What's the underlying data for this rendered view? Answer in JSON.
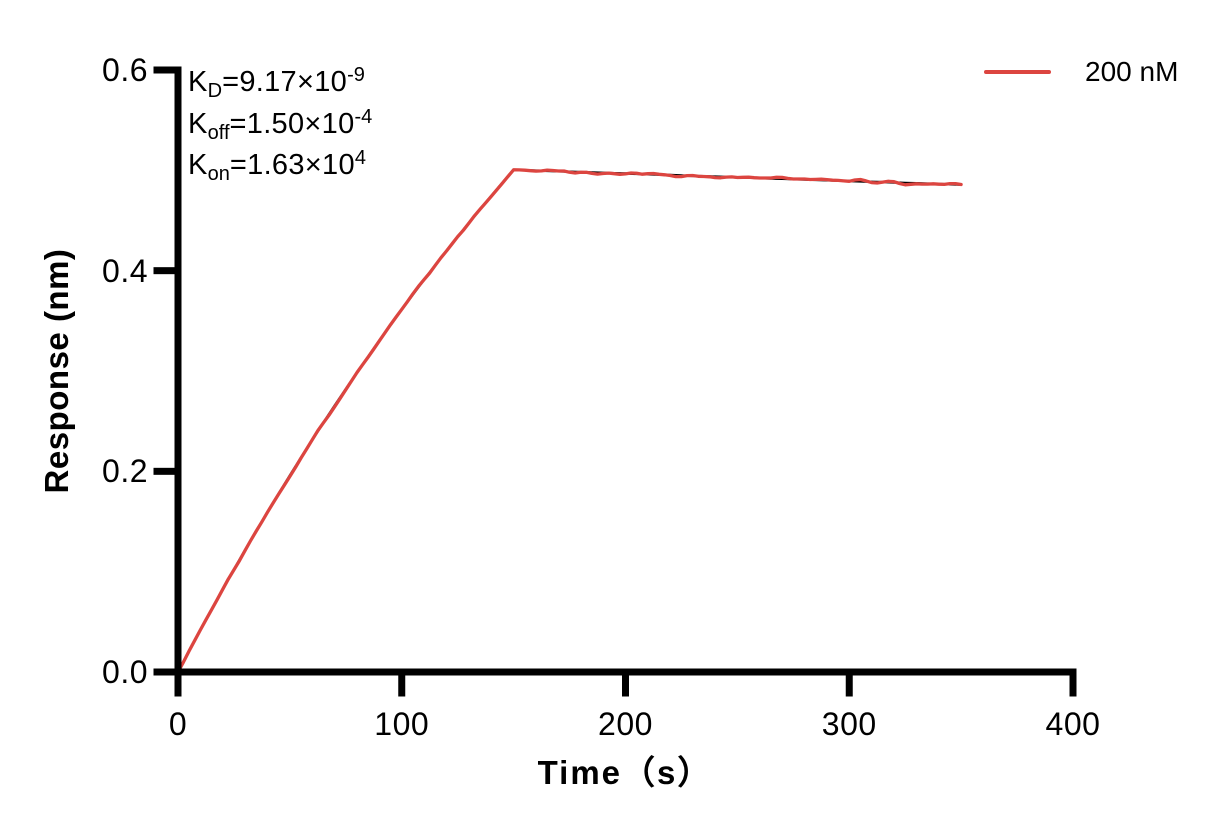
{
  "chart_data": {
    "type": "line",
    "title": "",
    "xlabel": "Time（s）",
    "ylabel": "Response (nm)",
    "xlim": [
      0,
      400
    ],
    "ylim": [
      0,
      0.6
    ],
    "x_ticks": [
      "0",
      "100",
      "200",
      "300",
      "400"
    ],
    "y_ticks": [
      "0.0",
      "0.2",
      "0.4",
      "0.6"
    ],
    "grid": false,
    "axis_color": "#000000",
    "legend": {
      "position": "top-right",
      "entries": [
        {
          "label": "200 nM",
          "color": "#DC4540"
        }
      ]
    },
    "annotations": [
      {
        "base": "K",
        "sub": "D",
        "rest": "=9.17×10",
        "sup": "-9"
      },
      {
        "base": "K",
        "sub": "off",
        "rest": "=1.50×10",
        "sup": "-4"
      },
      {
        "base": "K",
        "sub": "on",
        "rest": "=1.63×10",
        "sup": "4"
      }
    ],
    "kinetics": {
      "KD": 9.17e-09,
      "Koff": 0.00015,
      "Kon": 16300.0
    },
    "phases": {
      "association_end_s": 150,
      "curve_end_s": 350,
      "peak_response_nm": 0.5
    },
    "series": [
      {
        "name": "200 nM",
        "role": "measured-trace",
        "color": "#DC4540",
        "noise": {
          "association": 0.0018,
          "dissociation": 0.0032
        }
      },
      {
        "name": "fit",
        "role": "fitted-curve",
        "color": "#000000"
      }
    ],
    "fit_points": [
      [
        0,
        0
      ],
      [
        5,
        0.0211
      ],
      [
        10,
        0.0419
      ],
      [
        15,
        0.0623
      ],
      [
        20,
        0.0824
      ],
      [
        25,
        0.1021
      ],
      [
        30,
        0.1216
      ],
      [
        35,
        0.1406
      ],
      [
        40,
        0.1594
      ],
      [
        45,
        0.1778
      ],
      [
        50,
        0.1959
      ],
      [
        55,
        0.2138
      ],
      [
        60,
        0.2313
      ],
      [
        65,
        0.2485
      ],
      [
        70,
        0.2654
      ],
      [
        75,
        0.2821
      ],
      [
        80,
        0.2984
      ],
      [
        85,
        0.3145
      ],
      [
        90,
        0.3304
      ],
      [
        95,
        0.3459
      ],
      [
        100,
        0.3612
      ],
      [
        105,
        0.3762
      ],
      [
        110,
        0.391
      ],
      [
        115,
        0.4055
      ],
      [
        120,
        0.4198
      ],
      [
        125,
        0.4338
      ],
      [
        130,
        0.4476
      ],
      [
        135,
        0.4612
      ],
      [
        140,
        0.4745
      ],
      [
        145,
        0.4876
      ],
      [
        150,
        0.5005
      ],
      [
        155,
        0.5001
      ],
      [
        160,
        0.4997
      ],
      [
        165,
        0.4994
      ],
      [
        170,
        0.499
      ],
      [
        175,
        0.4986
      ],
      [
        180,
        0.4982
      ],
      [
        185,
        0.4979
      ],
      [
        190,
        0.4975
      ],
      [
        195,
        0.4971
      ],
      [
        200,
        0.4968
      ],
      [
        205,
        0.4964
      ],
      [
        210,
        0.496
      ],
      [
        215,
        0.4956
      ],
      [
        220,
        0.4953
      ],
      [
        225,
        0.4949
      ],
      [
        230,
        0.4945
      ],
      [
        235,
        0.4942
      ],
      [
        240,
        0.4938
      ],
      [
        245,
        0.4934
      ],
      [
        250,
        0.493
      ],
      [
        255,
        0.4927
      ],
      [
        260,
        0.4923
      ],
      [
        265,
        0.4919
      ],
      [
        270,
        0.4916
      ],
      [
        275,
        0.4912
      ],
      [
        280,
        0.4908
      ],
      [
        285,
        0.4905
      ],
      [
        290,
        0.4901
      ],
      [
        295,
        0.4897
      ],
      [
        300,
        0.4894
      ],
      [
        305,
        0.489
      ],
      [
        310,
        0.4886
      ],
      [
        315,
        0.4883
      ],
      [
        320,
        0.4879
      ],
      [
        325,
        0.4875
      ],
      [
        330,
        0.4872
      ],
      [
        335,
        0.4868
      ],
      [
        340,
        0.4864
      ],
      [
        345,
        0.4861
      ],
      [
        350,
        0.4857
      ]
    ]
  }
}
